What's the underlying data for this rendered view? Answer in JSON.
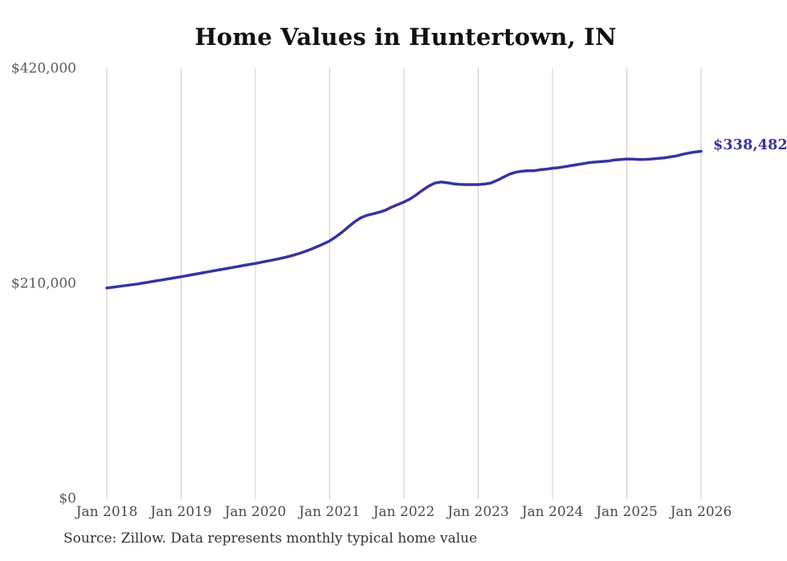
{
  "title": "Home Values in Huntertown, IN",
  "source_note": "Source: Zillow. Data represents monthly typical home value",
  "latest_value_label": "$338,482",
  "colors": {
    "line": "#3733A0",
    "latest_label": "#3733A0",
    "grid": "#cccccc",
    "x_tick_text": "#4a4a4a",
    "y_tick_text": "#595959",
    "title_text": "#111111",
    "source_text": "#333333",
    "background": "#ffffff"
  },
  "y_axis": {
    "tick_labels": [
      "$0",
      "$210,000",
      "$420,000"
    ],
    "tick_values": [
      0,
      210000,
      420000
    ],
    "max": 420000
  },
  "x_axis": {
    "tick_labels": [
      "Jan 2018",
      "Jan 2019",
      "Jan 2020",
      "Jan 2021",
      "Jan 2022",
      "Jan 2023",
      "Jan 2024",
      "Jan 2025",
      "Jan 2026"
    ]
  },
  "chart_data": {
    "type": "line",
    "title": "Home Values in Huntertown, IN",
    "series_name": "Monthly typical home value",
    "xlabel": "",
    "ylabel": "",
    "ylim": [
      0,
      420000
    ],
    "grid": "vertical-only",
    "legend": "none",
    "latest_value": 338482,
    "x_tick_labels": [
      "Jan 2018",
      "Jan 2019",
      "Jan 2020",
      "Jan 2021",
      "Jan 2022",
      "Jan 2023",
      "Jan 2024",
      "Jan 2025",
      "Jan 2026"
    ],
    "y_tick_labels": [
      "$0",
      "$210,000",
      "$420,000"
    ],
    "x": [
      "2018-01",
      "2018-02",
      "2018-03",
      "2018-04",
      "2018-05",
      "2018-06",
      "2018-07",
      "2018-08",
      "2018-09",
      "2018-10",
      "2018-11",
      "2018-12",
      "2019-01",
      "2019-02",
      "2019-03",
      "2019-04",
      "2019-05",
      "2019-06",
      "2019-07",
      "2019-08",
      "2019-09",
      "2019-10",
      "2019-11",
      "2019-12",
      "2020-01",
      "2020-02",
      "2020-03",
      "2020-04",
      "2020-05",
      "2020-06",
      "2020-07",
      "2020-08",
      "2020-09",
      "2020-10",
      "2020-11",
      "2020-12",
      "2021-01",
      "2021-02",
      "2021-03",
      "2021-04",
      "2021-05",
      "2021-06",
      "2021-07",
      "2021-08",
      "2021-09",
      "2021-10",
      "2021-11",
      "2021-12",
      "2022-01",
      "2022-02",
      "2022-03",
      "2022-04",
      "2022-05",
      "2022-06",
      "2022-07",
      "2022-08",
      "2022-09",
      "2022-10",
      "2022-11",
      "2022-12",
      "2023-01",
      "2023-02",
      "2023-03",
      "2023-04",
      "2023-05",
      "2023-06",
      "2023-07",
      "2023-08",
      "2023-09",
      "2023-10",
      "2023-11",
      "2023-12",
      "2024-01",
      "2024-02",
      "2024-03",
      "2024-04",
      "2024-05",
      "2024-06",
      "2024-07",
      "2024-08",
      "2024-09",
      "2024-10",
      "2024-11",
      "2024-12",
      "2025-01",
      "2025-02",
      "2025-03",
      "2025-04",
      "2025-05",
      "2025-06",
      "2025-07",
      "2025-08",
      "2025-09",
      "2025-10",
      "2025-11",
      "2025-12",
      "2026-01"
    ],
    "values": [
      205000,
      205800,
      206600,
      207400,
      208200,
      209000,
      210000,
      211000,
      212000,
      213000,
      214000,
      215000,
      216000,
      217100,
      218200,
      219300,
      220400,
      221500,
      222600,
      223600,
      224700,
      225800,
      226900,
      228000,
      229000,
      230200,
      231400,
      232600,
      233800,
      235200,
      236800,
      238600,
      240600,
      242900,
      245400,
      248100,
      251000,
      255000,
      259500,
      264500,
      269500,
      273500,
      276000,
      277500,
      279000,
      281000,
      284000,
      286500,
      289000,
      292000,
      296000,
      300500,
      304500,
      307500,
      308500,
      307800,
      306800,
      306200,
      306000,
      306000,
      306000,
      306500,
      307500,
      310000,
      313000,
      316000,
      318000,
      319000,
      319500,
      319500,
      320500,
      321000,
      322000,
      322500,
      323500,
      324500,
      325500,
      326500,
      327500,
      328000,
      328500,
      329000,
      330000,
      330500,
      331000,
      330800,
      330500,
      330600,
      331000,
      331500,
      332000,
      333000,
      334000,
      335500,
      336800,
      337800,
      338482
    ]
  }
}
